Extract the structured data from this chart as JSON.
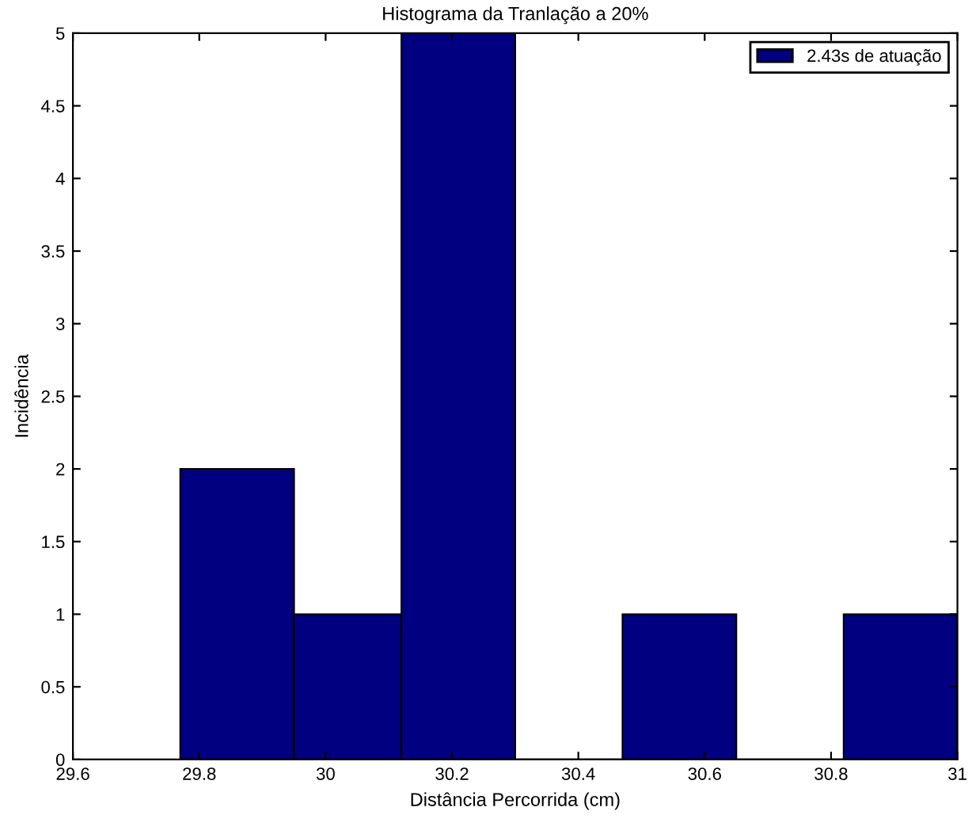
{
  "chart_data": {
    "type": "histogram",
    "title": "Histograma da Tranlação a 20%",
    "xlabel": "Distância Percorrida (cm)",
    "ylabel": "Incidência",
    "bins": [
      29.77,
      29.95,
      30.12,
      30.3,
      30.47,
      30.65,
      30.82,
      31.0
    ],
    "series": [
      {
        "name": "2.43s de atuação",
        "color": "#000080",
        "values": [
          2,
          1,
          5,
          0,
          1,
          0,
          1
        ]
      }
    ],
    "xlim": [
      29.6,
      31
    ],
    "xticks": [
      29.6,
      29.8,
      30,
      30.2,
      30.4,
      30.6,
      30.8,
      31
    ],
    "ylim": [
      0,
      5
    ],
    "yticks": [
      0,
      0.5,
      1,
      1.5,
      2,
      2.5,
      3,
      3.5,
      4,
      4.5,
      5
    ],
    "grid": false,
    "legend": "top right"
  }
}
